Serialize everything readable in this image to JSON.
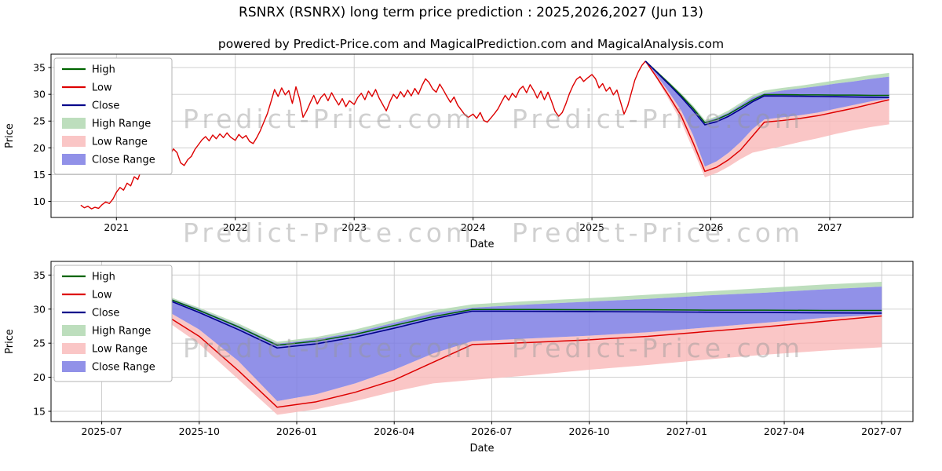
{
  "title": "RSNRX (RSNRX) long term price prediction : 2025,2026,2027 (Jun 13)",
  "subtitle": "powered by Predict-Price.com and MagicalPrediction.com and MagicalAnalysis.com",
  "watermark": {
    "text": "Predict-Price.com"
  },
  "colors": {
    "high": "#006400",
    "low": "#dd0000",
    "close": "#00008b",
    "high_range": "#b2d8b2",
    "low_range": "#f9bcbc",
    "close_range": "#7e7ee4",
    "grid": "#c9c9c9"
  },
  "legend": [
    {
      "label": "High",
      "type": "line",
      "color": "#006400"
    },
    {
      "label": "Low",
      "type": "line",
      "color": "#dd0000"
    },
    {
      "label": "Close",
      "type": "line",
      "color": "#00008b"
    },
    {
      "label": "High Range",
      "type": "patch",
      "color": "#b2d8b2"
    },
    {
      "label": "Low Range",
      "type": "patch",
      "color": "#f9bcbc"
    },
    {
      "label": "Close Range",
      "type": "patch",
      "color": "#7e7ee4"
    }
  ],
  "chart_data": {
    "type": "line",
    "title": "RSNRX (RSNRX) long term price prediction : 2025,2026,2027 (Jun 13)",
    "prediction": {
      "x": [
        2025.45,
        2025.55,
        2025.65,
        2025.75,
        2025.85,
        2025.95,
        2026.05,
        2026.15,
        2026.25,
        2026.35,
        2026.45,
        2026.6,
        2026.75,
        2026.9,
        2027.05,
        2027.2,
        2027.35,
        2027.5
      ],
      "close": [
        36.2,
        34.0,
        31.8,
        29.5,
        27.0,
        24.3,
        24.9,
        25.9,
        27.2,
        28.6,
        29.7,
        29.68,
        29.65,
        29.6,
        29.55,
        29.5,
        29.45,
        29.4
      ],
      "high": [
        36.2,
        34.1,
        32.0,
        29.8,
        27.4,
        24.7,
        25.3,
        26.3,
        27.6,
        28.9,
        29.95,
        29.95,
        29.9,
        29.9,
        29.85,
        29.85,
        29.8,
        29.8
      ],
      "low": [
        36.2,
        33.0,
        29.6,
        26.0,
        21.0,
        15.6,
        16.4,
        17.8,
        19.6,
        22.2,
        24.8,
        25.1,
        25.5,
        26.0,
        26.7,
        27.4,
        28.2,
        29.0
      ],
      "band_high_upper": [
        36.2,
        34.3,
        32.3,
        30.2,
        27.9,
        25.2,
        25.9,
        27.0,
        28.4,
        29.8,
        30.7,
        31.2,
        31.6,
        32.1,
        32.6,
        33.1,
        33.6,
        34.0
      ],
      "band_close_upper": [
        36.2,
        34.2,
        32.1,
        30.0,
        27.6,
        24.9,
        25.6,
        26.6,
        28.0,
        29.4,
        30.2,
        30.7,
        31.1,
        31.5,
        32.0,
        32.4,
        32.9,
        33.3
      ],
      "band_close_lower": [
        36.2,
        33.4,
        30.3,
        27.0,
        22.4,
        16.5,
        17.5,
        19.1,
        21.1,
        23.5,
        25.3,
        25.7,
        26.1,
        26.6,
        27.3,
        28.0,
        28.7,
        29.2
      ],
      "band_low_lower": [
        36.2,
        32.7,
        28.9,
        24.9,
        19.7,
        14.5,
        15.3,
        16.5,
        17.9,
        19.1,
        19.6,
        20.3,
        21.1,
        21.8,
        22.6,
        23.3,
        23.9,
        24.4
      ]
    },
    "historical": {
      "points": [
        [
          2020.7,
          9.3
        ],
        [
          2020.73,
          8.8
        ],
        [
          2020.76,
          9.1
        ],
        [
          2020.79,
          8.6
        ],
        [
          2020.82,
          8.9
        ],
        [
          2020.85,
          8.7
        ],
        [
          2020.88,
          9.4
        ],
        [
          2020.91,
          9.9
        ],
        [
          2020.94,
          9.6
        ],
        [
          2020.97,
          10.4
        ],
        [
          2021.0,
          11.7
        ],
        [
          2021.03,
          12.6
        ],
        [
          2021.06,
          12.1
        ],
        [
          2021.09,
          13.4
        ],
        [
          2021.12,
          12.9
        ],
        [
          2021.15,
          14.6
        ],
        [
          2021.18,
          14.1
        ],
        [
          2021.21,
          15.9
        ],
        [
          2021.24,
          15.3
        ],
        [
          2021.27,
          16.5
        ],
        [
          2021.3,
          15.8
        ],
        [
          2021.33,
          17.1
        ],
        [
          2021.36,
          16.6
        ],
        [
          2021.39,
          17.9
        ],
        [
          2021.42,
          17.3
        ],
        [
          2021.45,
          18.6
        ],
        [
          2021.48,
          19.8
        ],
        [
          2021.51,
          19.1
        ],
        [
          2021.54,
          17.2
        ],
        [
          2021.57,
          16.7
        ],
        [
          2021.6,
          17.8
        ],
        [
          2021.63,
          18.4
        ],
        [
          2021.66,
          19.7
        ],
        [
          2021.69,
          20.6
        ],
        [
          2021.72,
          21.5
        ],
        [
          2021.75,
          22.1
        ],
        [
          2021.78,
          21.3
        ],
        [
          2021.81,
          22.4
        ],
        [
          2021.84,
          21.7
        ],
        [
          2021.87,
          22.6
        ],
        [
          2021.9,
          21.9
        ],
        [
          2021.93,
          22.8
        ],
        [
          2021.96,
          22.0
        ],
        [
          2022.0,
          21.4
        ],
        [
          2022.03,
          22.5
        ],
        [
          2022.06,
          21.8
        ],
        [
          2022.09,
          22.3
        ],
        [
          2022.12,
          21.2
        ],
        [
          2022.15,
          20.8
        ],
        [
          2022.18,
          21.9
        ],
        [
          2022.21,
          23.2
        ],
        [
          2022.24,
          24.8
        ],
        [
          2022.27,
          26.4
        ],
        [
          2022.3,
          28.6
        ],
        [
          2022.33,
          30.9
        ],
        [
          2022.36,
          29.6
        ],
        [
          2022.39,
          31.2
        ],
        [
          2022.42,
          29.9
        ],
        [
          2022.45,
          30.7
        ],
        [
          2022.48,
          28.3
        ],
        [
          2022.51,
          31.4
        ],
        [
          2022.54,
          29.2
        ],
        [
          2022.57,
          25.7
        ],
        [
          2022.6,
          26.9
        ],
        [
          2022.63,
          28.4
        ],
        [
          2022.66,
          29.8
        ],
        [
          2022.69,
          28.2
        ],
        [
          2022.72,
          29.4
        ],
        [
          2022.75,
          30.1
        ],
        [
          2022.78,
          28.8
        ],
        [
          2022.81,
          30.3
        ],
        [
          2022.84,
          29.1
        ],
        [
          2022.87,
          28.0
        ],
        [
          2022.9,
          29.2
        ],
        [
          2022.93,
          27.7
        ],
        [
          2022.96,
          28.8
        ],
        [
          2023.0,
          28.1
        ],
        [
          2023.03,
          29.4
        ],
        [
          2023.06,
          30.2
        ],
        [
          2023.09,
          29.0
        ],
        [
          2023.12,
          30.6
        ],
        [
          2023.15,
          29.6
        ],
        [
          2023.18,
          30.9
        ],
        [
          2023.21,
          29.3
        ],
        [
          2023.24,
          28.1
        ],
        [
          2023.27,
          26.9
        ],
        [
          2023.3,
          28.6
        ],
        [
          2023.33,
          30.0
        ],
        [
          2023.36,
          29.2
        ],
        [
          2023.39,
          30.5
        ],
        [
          2023.42,
          29.5
        ],
        [
          2023.45,
          30.8
        ],
        [
          2023.48,
          29.7
        ],
        [
          2023.51,
          31.1
        ],
        [
          2023.54,
          30.0
        ],
        [
          2023.57,
          31.6
        ],
        [
          2023.6,
          32.9
        ],
        [
          2023.63,
          32.2
        ],
        [
          2023.66,
          31.0
        ],
        [
          2023.69,
          30.4
        ],
        [
          2023.72,
          31.9
        ],
        [
          2023.75,
          30.8
        ],
        [
          2023.78,
          29.6
        ],
        [
          2023.81,
          28.5
        ],
        [
          2023.84,
          29.5
        ],
        [
          2023.87,
          28.0
        ],
        [
          2023.9,
          27.1
        ],
        [
          2023.93,
          26.2
        ],
        [
          2023.96,
          25.7
        ],
        [
          2024.0,
          26.3
        ],
        [
          2024.03,
          25.5
        ],
        [
          2024.06,
          26.6
        ],
        [
          2024.09,
          25.1
        ],
        [
          2024.12,
          24.8
        ],
        [
          2024.15,
          25.6
        ],
        [
          2024.18,
          26.4
        ],
        [
          2024.21,
          27.3
        ],
        [
          2024.24,
          28.6
        ],
        [
          2024.27,
          29.8
        ],
        [
          2024.3,
          28.9
        ],
        [
          2024.33,
          30.2
        ],
        [
          2024.36,
          29.4
        ],
        [
          2024.39,
          30.9
        ],
        [
          2024.42,
          31.5
        ],
        [
          2024.45,
          30.3
        ],
        [
          2024.48,
          31.8
        ],
        [
          2024.51,
          30.7
        ],
        [
          2024.54,
          29.3
        ],
        [
          2024.57,
          30.6
        ],
        [
          2024.6,
          29.0
        ],
        [
          2024.63,
          30.4
        ],
        [
          2024.66,
          28.7
        ],
        [
          2024.69,
          26.8
        ],
        [
          2024.72,
          25.9
        ],
        [
          2024.75,
          26.6
        ],
        [
          2024.78,
          28.2
        ],
        [
          2024.81,
          30.1
        ],
        [
          2024.84,
          31.6
        ],
        [
          2024.87,
          32.8
        ],
        [
          2024.9,
          33.3
        ],
        [
          2024.93,
          32.4
        ],
        [
          2024.96,
          33.0
        ],
        [
          2025.0,
          33.7
        ],
        [
          2025.03,
          32.9
        ],
        [
          2025.06,
          31.2
        ],
        [
          2025.09,
          32.0
        ],
        [
          2025.12,
          30.6
        ],
        [
          2025.15,
          31.3
        ],
        [
          2025.18,
          29.9
        ],
        [
          2025.21,
          30.8
        ],
        [
          2025.24,
          28.6
        ],
        [
          2025.27,
          26.3
        ],
        [
          2025.3,
          27.8
        ],
        [
          2025.33,
          30.2
        ],
        [
          2025.36,
          32.6
        ],
        [
          2025.39,
          34.2
        ],
        [
          2025.42,
          35.4
        ],
        [
          2025.45,
          36.2
        ]
      ]
    },
    "charts": [
      {
        "name": "full-history-chart",
        "xlabel": "Date",
        "ylabel": "Price",
        "xlim": [
          2020.45,
          2027.7
        ],
        "ylim": [
          7,
          37.5
        ],
        "yticks": [
          10,
          15,
          20,
          25,
          30,
          35
        ],
        "xticks": [
          {
            "v": 2021,
            "label": "2021"
          },
          {
            "v": 2022,
            "label": "2022"
          },
          {
            "v": 2023,
            "label": "2023"
          },
          {
            "v": 2024,
            "label": "2024"
          },
          {
            "v": 2025,
            "label": "2025"
          },
          {
            "v": 2026,
            "label": "2026"
          },
          {
            "v": 2027,
            "label": "2027"
          }
        ],
        "show_historical": true
      },
      {
        "name": "prediction-zoom-chart",
        "xlabel": "Date",
        "ylabel": "Price",
        "xlim": [
          2025.37,
          2027.58
        ],
        "ylim": [
          13.5,
          37
        ],
        "yticks": [
          15,
          20,
          25,
          30,
          35
        ],
        "xticks": [
          {
            "v": 2025.5,
            "label": "2025-07"
          },
          {
            "v": 2025.75,
            "label": "2025-10"
          },
          {
            "v": 2026.0,
            "label": "2026-01"
          },
          {
            "v": 2026.25,
            "label": "2026-04"
          },
          {
            "v": 2026.5,
            "label": "2026-07"
          },
          {
            "v": 2026.75,
            "label": "2026-10"
          },
          {
            "v": 2027.0,
            "label": "2027-01"
          },
          {
            "v": 2027.25,
            "label": "2027-04"
          },
          {
            "v": 2027.5,
            "label": "2027-07"
          }
        ],
        "show_historical": false
      }
    ]
  }
}
